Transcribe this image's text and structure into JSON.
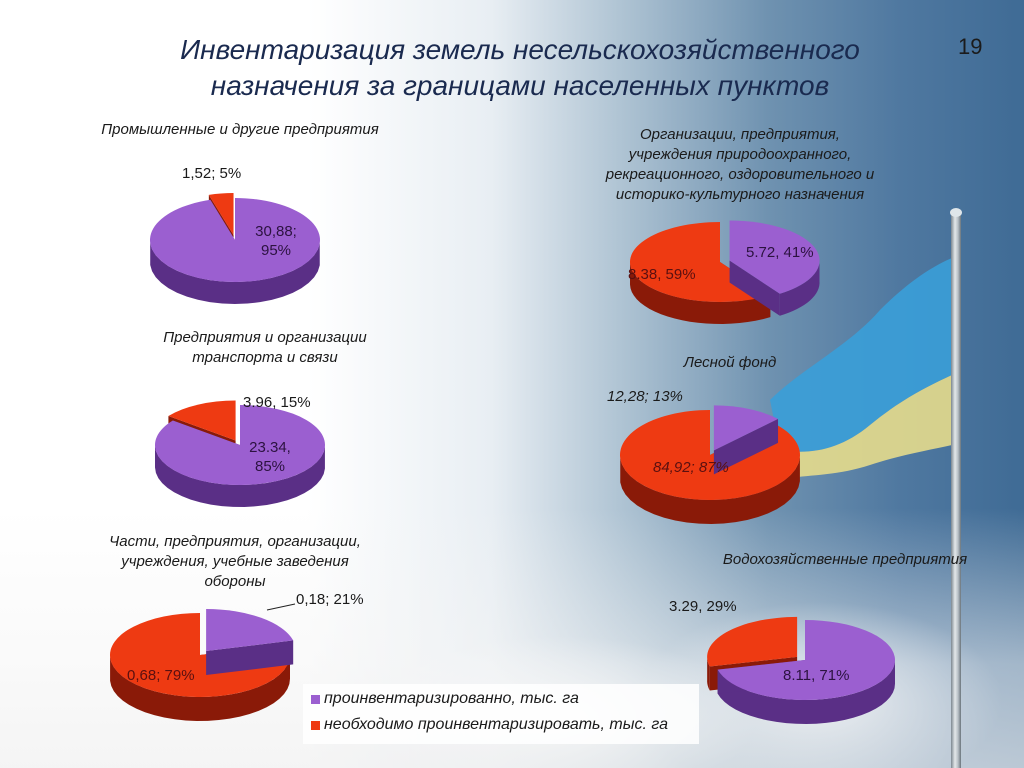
{
  "slide": {
    "title_line1": "Инвентаризация земель несельскохозяйственного",
    "title_line2": "назначения за границами населенных пунктов",
    "slide_number": "19"
  },
  "colors": {
    "inventoried": "#9b5fd0",
    "inventoried_side": "#5a2f86",
    "to_inventory": "#ee3a12",
    "to_inventory_side": "#8a1a08",
    "title": "#1a2a4f",
    "flag_blue": "#3a9fd8",
    "flag_yellow": "#e6dc8c"
  },
  "legend": {
    "items": [
      {
        "label": "проинвентаризированно, тыс. га",
        "color": "#9b5fd0"
      },
      {
        "label": "необходимо проинвентаризировать, тыс. га",
        "color": "#ee3a12"
      }
    ]
  },
  "chart_data": [
    {
      "type": "pie",
      "title": "Промышленные и другие предприятия",
      "series": [
        {
          "name": "проинвентаризированно, тыс. га",
          "value": 30.88,
          "percent": 95,
          "label": "30,88;\n95%"
        },
        {
          "name": "необходимо проинвентаризировать, тыс. га",
          "value": 1.52,
          "percent": 5,
          "label": "1,52; 5%"
        }
      ]
    },
    {
      "type": "pie",
      "title": "Организации, предприятия, учреждения природоохранного, рекреационного, оздоровительного и историко-культурного назначения",
      "series": [
        {
          "name": "проинвентаризированно, тыс. га",
          "value": 5.72,
          "percent": 41,
          "label": "5.72, 41%"
        },
        {
          "name": "необходимо проинвентаризировать, тыс. га",
          "value": 8.38,
          "percent": 59,
          "label": "8.38, 59%"
        }
      ]
    },
    {
      "type": "pie",
      "title": "Предприятия и организации транспорта и связи",
      "series": [
        {
          "name": "проинвентаризированно, тыс. га",
          "value": 23.34,
          "percent": 85,
          "label": "23.34,\n85%"
        },
        {
          "name": "необходимо проинвентаризировать, тыс. га",
          "value": 3.96,
          "percent": 15,
          "label": "3.96, 15%"
        }
      ]
    },
    {
      "type": "pie",
      "title": "Лесной фонд",
      "series": [
        {
          "name": "проинвентаризированно, тыс. га",
          "value": 12.28,
          "percent": 13,
          "label": "12,28; 13%"
        },
        {
          "name": "необходимо проинвентаризировать, тыс. га",
          "value": 84.92,
          "percent": 87,
          "label": "84,92; 87%"
        }
      ]
    },
    {
      "type": "pie",
      "title": "Части, предприятия, организации, учреждения, учебные заведения обороны",
      "series": [
        {
          "name": "проинвентаризированно, тыс. га",
          "value": 0.18,
          "percent": 21,
          "label": "0,18; 21%"
        },
        {
          "name": "необходимо проинвентаризировать, тыс. га",
          "value": 0.68,
          "percent": 79,
          "label": "0,68; 79%"
        }
      ]
    },
    {
      "type": "pie",
      "title": "Водохозяйственные предприятия",
      "series": [
        {
          "name": "проинвентаризированно, тыс. га",
          "value": 8.11,
          "percent": 71,
          "label": "8.11, 71%"
        },
        {
          "name": "необходимо проинвентаризировать, тыс. га",
          "value": 3.29,
          "percent": 29,
          "label": "3.29, 29%"
        }
      ]
    }
  ],
  "charts_text": {
    "c1": {
      "title": "Промышленные и другие предприятия",
      "label_a_1": "30,88;",
      "label_a_2": "95%",
      "label_b": "1,52; 5%"
    },
    "c2": {
      "title_1": "Организации, предприятия,",
      "title_2": "учреждения природоохранного,",
      "title_3": "рекреационного, оздоровительного и",
      "title_4": "историко-культурного назначения",
      "label_a": "5.72, 41%",
      "label_b": "8.38, 59%"
    },
    "c3": {
      "title_1": "Предприятия и организации",
      "title_2": "транспорта и связи",
      "label_a_1": "23.34,",
      "label_a_2": "85%",
      "label_b": "3.96, 15%"
    },
    "c4": {
      "title": "Лесной фонд",
      "label_a": "12,28; 13%",
      "label_b": "84,92; 87%"
    },
    "c5": {
      "title_1": "Части, предприятия, организации,",
      "title_2": "учреждения, учебные заведения",
      "title_3": "обороны",
      "label_a": "0,18; 21%",
      "label_b": "0,68; 79%"
    },
    "c6": {
      "title": "Водохозяйственные предприятия",
      "label_a": "8.11, 71%",
      "label_b": "3.29, 29%"
    }
  }
}
